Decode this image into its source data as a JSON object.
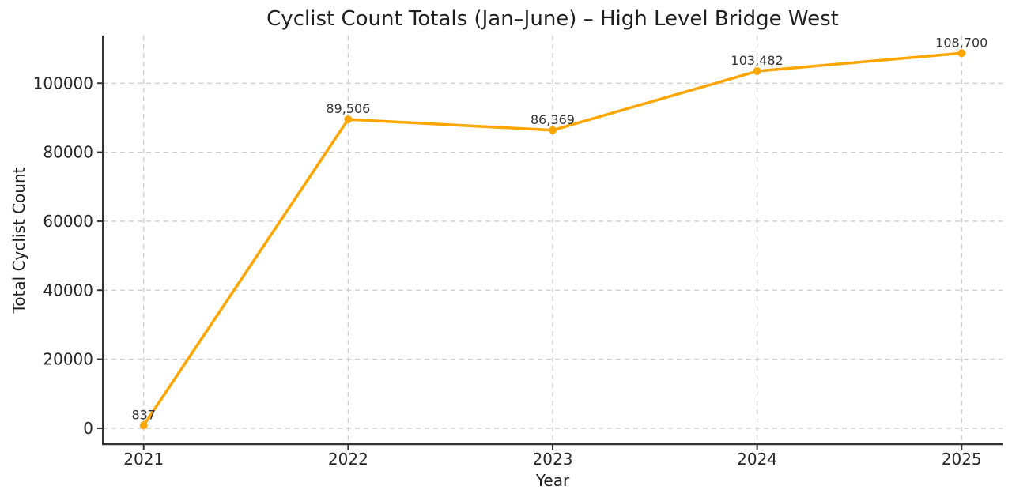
{
  "chart_data": {
    "type": "line",
    "title": "Cyclist Count Totals (Jan–June) – High Level Bridge West",
    "xlabel": "Year",
    "ylabel": "Total Cyclist Count",
    "x": [
      2021,
      2022,
      2023,
      2024,
      2025
    ],
    "x_tick_labels": [
      "2021",
      "2022",
      "2023",
      "2024",
      "2025"
    ],
    "values": [
      837,
      89506,
      86369,
      103482,
      108700
    ],
    "point_labels": [
      "837",
      "89,506",
      "86,369",
      "103,482",
      "108,700"
    ],
    "yticks": [
      0,
      20000,
      40000,
      60000,
      80000,
      100000
    ],
    "ytick_labels": [
      "0",
      "20000",
      "40000",
      "60000",
      "80000",
      "100000"
    ],
    "xlim": [
      2020.8,
      2025.2
    ],
    "ylim": [
      -4600,
      113800
    ],
    "grid": true,
    "legend_position": "none",
    "colors": {
      "line": "#FFA500",
      "marker": "#FFA500",
      "grid": "#cccccc",
      "spine": "#333333",
      "tick_text": "#262626",
      "annotation_text": "#333333",
      "background": "#ffffff"
    }
  }
}
